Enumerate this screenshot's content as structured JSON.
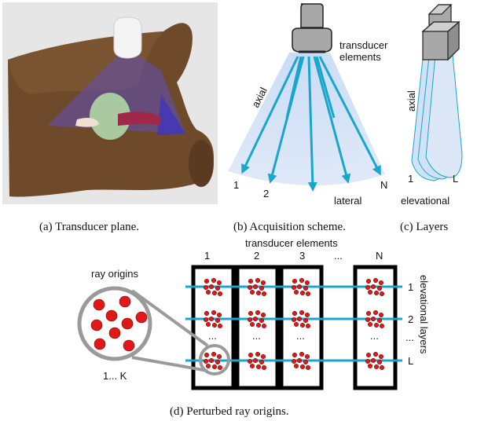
{
  "captions": {
    "a": "(a) Transducer plane.",
    "b": "(b) Acquisition scheme.",
    "c": "(c) Layers",
    "d": "(d) Perturbed ray origins."
  },
  "panel_b": {
    "transducer_label_line1": "transducer",
    "transducer_label_line2": "elements",
    "axial": "axial",
    "lateral": "lateral",
    "ray_labels": [
      "1",
      "2",
      "N"
    ]
  },
  "panel_c": {
    "axial": "axial",
    "elevational": "elevational",
    "layer_first": "1",
    "layer_last": "L"
  },
  "panel_d": {
    "transducer_elements": "transducer elements",
    "column_labels": [
      "1",
      "2",
      "3",
      "...",
      "N"
    ],
    "row_labels": [
      "1",
      "2",
      "...",
      "L"
    ],
    "elevational_layers": "elevational layers",
    "ray_origins": "ray origins",
    "k_label": "1... K",
    "dots": "...",
    "colors": {
      "ray": "#1aa5cc",
      "origin_dot": "#e01818"
    }
  }
}
